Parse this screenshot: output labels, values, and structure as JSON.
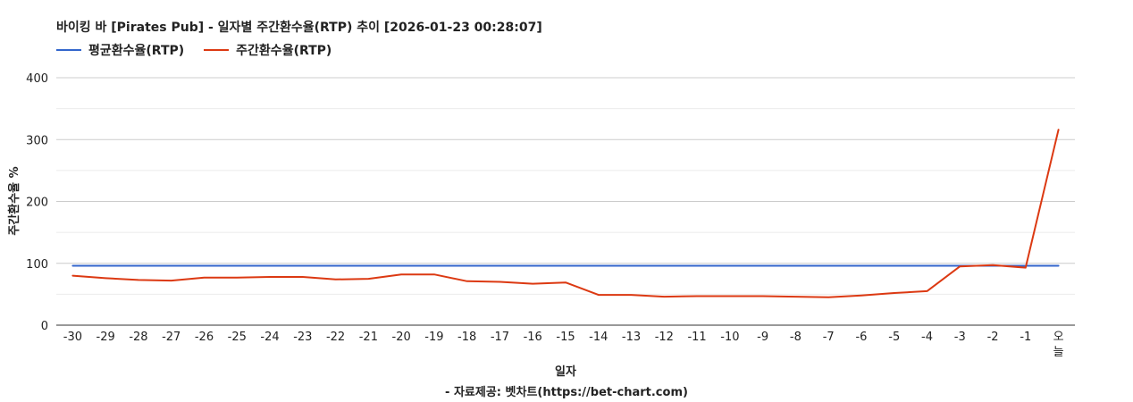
{
  "chart_data": {
    "type": "line",
    "title": "바이킹 바 [Pirates Pub] - 일자별 주간환수율(RTP) 추이 [2026-01-23 00:28:07]",
    "xlabel": "일자",
    "ylabel": "주간환수율 %",
    "source": "- 자료제공: 벳차트(https://bet-chart.com)",
    "ylim": [
      0,
      400
    ],
    "yticks": [
      0,
      100,
      200,
      300,
      400
    ],
    "grid": true,
    "legend_position": "top-left",
    "categories": [
      "-30",
      "-29",
      "-28",
      "-27",
      "-26",
      "-25",
      "-24",
      "-23",
      "-22",
      "-21",
      "-20",
      "-19",
      "-18",
      "-17",
      "-16",
      "-15",
      "-14",
      "-13",
      "-12",
      "-11",
      "-10",
      "-9",
      "-8",
      "-7",
      "-6",
      "-5",
      "-4",
      "-3",
      "-2",
      "-1",
      "오늘"
    ],
    "series": [
      {
        "name": "평균환수율(RTP)",
        "color": "#3366cc",
        "values": [
          96,
          96,
          96,
          96,
          96,
          96,
          96,
          96,
          96,
          96,
          96,
          96,
          96,
          96,
          96,
          96,
          96,
          96,
          96,
          96,
          96,
          96,
          96,
          96,
          96,
          96,
          96,
          96,
          96,
          96,
          96
        ]
      },
      {
        "name": "주간환수율(RTP)",
        "color": "#dc3912",
        "values": [
          80,
          76,
          73,
          72,
          77,
          77,
          78,
          78,
          74,
          75,
          82,
          82,
          71,
          70,
          67,
          69,
          49,
          49,
          46,
          47,
          47,
          47,
          46,
          45,
          48,
          52,
          55,
          95,
          97,
          93,
          316
        ]
      }
    ]
  }
}
